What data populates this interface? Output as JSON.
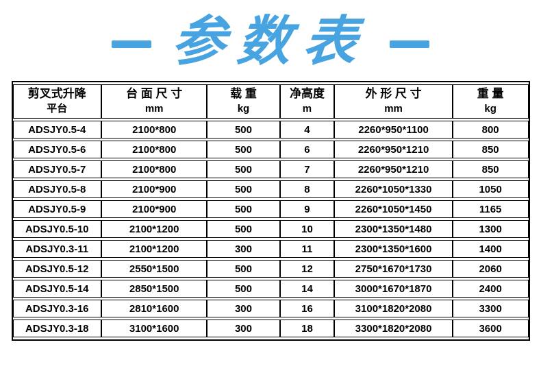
{
  "title": {
    "text": "参数表",
    "dash_icon": "horizontal-bar",
    "color": "#47A4E0"
  },
  "colors": {
    "title_blue": "#47A4E0",
    "table_border": "#000000",
    "text": "#000000",
    "background": "#FFFFFF"
  },
  "table": {
    "columns": [
      {
        "title": "剪叉式升降",
        "unit": "平台"
      },
      {
        "title": "台 面 尺 寸",
        "unit": "mm"
      },
      {
        "title": "载 重",
        "unit": "kg"
      },
      {
        "title": "净高度",
        "unit": "m"
      },
      {
        "title": "外 形 尺 寸",
        "unit": "mm"
      },
      {
        "title": "重 量",
        "unit": "kg"
      }
    ],
    "rows": [
      {
        "model": "ADSJY0.5-4",
        "platform_size": "2100*800",
        "load": "500",
        "net_height": "4",
        "overall_size": "2260*950*1100",
        "weight": "800"
      },
      {
        "model": "ADSJY0.5-6",
        "platform_size": "2100*800",
        "load": "500",
        "net_height": "6",
        "overall_size": "2260*950*1210",
        "weight": "850"
      },
      {
        "model": "ADSJY0.5-7",
        "platform_size": "2100*800",
        "load": "500",
        "net_height": "7",
        "overall_size": "2260*950*1210",
        "weight": "850"
      },
      {
        "model": "ADSJY0.5-8",
        "platform_size": "2100*900",
        "load": "500",
        "net_height": "8",
        "overall_size": "2260*1050*1330",
        "weight": "1050"
      },
      {
        "model": "ADSJY0.5-9",
        "platform_size": "2100*900",
        "load": "500",
        "net_height": "9",
        "overall_size": "2260*1050*1450",
        "weight": "1165"
      },
      {
        "model": "ADSJY0.5-10",
        "platform_size": "2100*1200",
        "load": "500",
        "net_height": "10",
        "overall_size": "2300*1350*1480",
        "weight": "1300"
      },
      {
        "model": "ADSJY0.3-11",
        "platform_size": "2100*1200",
        "load": "300",
        "net_height": "11",
        "overall_size": "2300*1350*1600",
        "weight": "1400"
      },
      {
        "model": "ADSJY0.5-12",
        "platform_size": "2550*1500",
        "load": "500",
        "net_height": "12",
        "overall_size": "2750*1670*1730",
        "weight": "2060"
      },
      {
        "model": "ADSJY0.5-14",
        "platform_size": "2850*1500",
        "load": "500",
        "net_height": "14",
        "overall_size": "3000*1670*1870",
        "weight": "2400"
      },
      {
        "model": "ADSJY0.3-16",
        "platform_size": "2810*1600",
        "load": "300",
        "net_height": "16",
        "overall_size": "3100*1820*2080",
        "weight": "3300"
      },
      {
        "model": "ADSJY0.3-18",
        "platform_size": "3100*1600",
        "load": "300",
        "net_height": "18",
        "overall_size": "3300*1820*2080",
        "weight": "3600"
      }
    ]
  }
}
